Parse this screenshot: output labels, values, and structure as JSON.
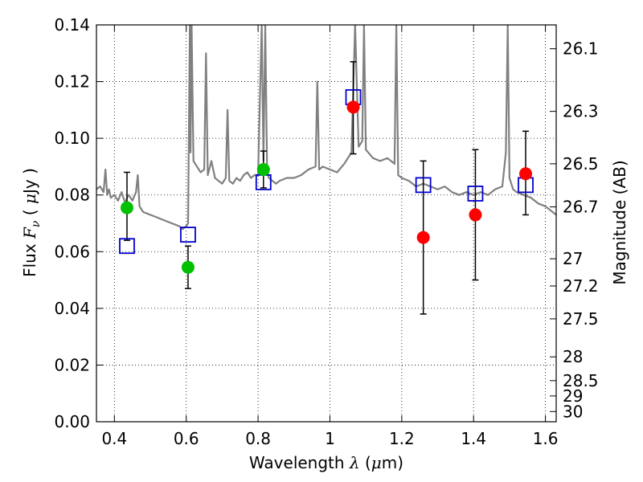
{
  "chart_data": {
    "type": "line",
    "xlabel": "Wavelength  λ (μm)",
    "ylabel": "Flux  F_ν  ( μJy )",
    "ylabel_right": "Magnitude (AB)",
    "xlim": [
      0.35,
      1.63
    ],
    "ylim": [
      0,
      0.14
    ],
    "grid": true,
    "x_ticks": [
      0.4,
      0.6,
      0.8,
      1.0,
      1.2,
      1.4,
      1.6
    ],
    "x_tick_labels": [
      "0.4",
      "0.6",
      "0.8",
      "1",
      "1.2",
      "1.4",
      "1.6"
    ],
    "y_ticks": [
      0,
      0.02,
      0.04,
      0.06,
      0.08,
      0.1,
      0.12,
      0.14
    ],
    "y_tick_labels": [
      "0.00",
      "0.02",
      "0.04",
      "0.06",
      "0.08",
      "0.10",
      "0.12",
      "0.14"
    ],
    "right_axis_ticks": [
      {
        "flux": 0.1316,
        "label": "26.1"
      },
      {
        "flux": 0.1095,
        "label": "26.3"
      },
      {
        "flux": 0.091,
        "label": "26.5"
      },
      {
        "flux": 0.0758,
        "label": "26.7"
      },
      {
        "flux": 0.0575,
        "label": "27"
      },
      {
        "flux": 0.0479,
        "label": "27.2"
      },
      {
        "flux": 0.0363,
        "label": "27.5"
      },
      {
        "flux": 0.0229,
        "label": "28"
      },
      {
        "flux": 0.0145,
        "label": "28.5"
      },
      {
        "flux": 0.0091,
        "label": "29"
      },
      {
        "flux": 0.0036,
        "label": "30"
      }
    ],
    "series": [
      {
        "kind": "model-spectrum",
        "color": "#808080",
        "x": [
          0.35,
          0.36,
          0.37,
          0.375,
          0.38,
          0.385,
          0.39,
          0.4,
          0.41,
          0.42,
          0.43,
          0.435,
          0.44,
          0.45,
          0.46,
          0.465,
          0.47,
          0.48,
          0.5,
          0.52,
          0.54,
          0.56,
          0.58,
          0.59,
          0.6,
          0.605,
          0.61,
          0.612,
          0.615,
          0.62,
          0.63,
          0.64,
          0.65,
          0.655,
          0.66,
          0.67,
          0.68,
          0.69,
          0.7,
          0.71,
          0.715,
          0.72,
          0.73,
          0.74,
          0.75,
          0.76,
          0.77,
          0.78,
          0.79,
          0.8,
          0.81,
          0.815,
          0.82,
          0.825,
          0.83,
          0.84,
          0.85,
          0.86,
          0.88,
          0.9,
          0.92,
          0.94,
          0.96,
          0.965,
          0.97,
          0.98,
          1.0,
          1.02,
          1.04,
          1.06,
          1.07,
          1.08,
          1.09,
          1.095,
          1.1,
          1.12,
          1.14,
          1.16,
          1.18,
          1.185,
          1.19,
          1.2,
          1.22,
          1.24,
          1.26,
          1.28,
          1.3,
          1.32,
          1.34,
          1.36,
          1.38,
          1.4,
          1.42,
          1.44,
          1.46,
          1.48,
          1.49,
          1.495,
          1.5,
          1.51,
          1.52,
          1.54,
          1.56,
          1.58,
          1.6,
          1.62,
          1.63
        ],
        "y": [
          0.082,
          0.083,
          0.081,
          0.089,
          0.08,
          0.082,
          0.079,
          0.08,
          0.078,
          0.081,
          0.077,
          0.079,
          0.08,
          0.078,
          0.081,
          0.087,
          0.076,
          0.074,
          0.073,
          0.072,
          0.071,
          0.07,
          0.069,
          0.068,
          0.069,
          0.07,
          0.14,
          0.095,
          0.14,
          0.092,
          0.09,
          0.088,
          0.089,
          0.13,
          0.087,
          0.092,
          0.086,
          0.085,
          0.084,
          0.086,
          0.11,
          0.085,
          0.084,
          0.086,
          0.085,
          0.087,
          0.088,
          0.086,
          0.087,
          0.087,
          0.14,
          0.092,
          0.14,
          0.089,
          0.086,
          0.085,
          0.084,
          0.085,
          0.086,
          0.086,
          0.087,
          0.089,
          0.09,
          0.12,
          0.089,
          0.09,
          0.089,
          0.088,
          0.091,
          0.095,
          0.14,
          0.097,
          0.099,
          0.14,
          0.096,
          0.093,
          0.092,
          0.093,
          0.091,
          0.14,
          0.087,
          0.086,
          0.085,
          0.083,
          0.084,
          0.083,
          0.082,
          0.083,
          0.081,
          0.08,
          0.081,
          0.08,
          0.081,
          0.08,
          0.082,
          0.083,
          0.095,
          0.14,
          0.086,
          0.082,
          0.081,
          0.08,
          0.079,
          0.077,
          0.076,
          0.074,
          0.073
        ]
      },
      {
        "kind": "model-photometry",
        "marker": "open-square",
        "color": "#0000cc",
        "x": [
          0.435,
          0.605,
          0.815,
          1.065,
          1.26,
          1.405,
          1.545
        ],
        "y": [
          0.062,
          0.066,
          0.0845,
          0.1145,
          0.0835,
          0.0805,
          0.0835
        ]
      },
      {
        "kind": "observed-filled",
        "marker": "circle",
        "color": "#00c000",
        "x": [
          0.435,
          0.605,
          0.815
        ],
        "y": [
          0.0755,
          0.0545,
          0.089
        ],
        "err_low": [
          0.064,
          0.047,
          0.0825
        ],
        "err_high": [
          0.088,
          0.062,
          0.0955
        ]
      },
      {
        "kind": "observed-filled",
        "marker": "circle",
        "color": "#ff0000",
        "x": [
          1.065,
          1.26,
          1.405,
          1.545
        ],
        "y": [
          0.111,
          0.065,
          0.073,
          0.0875
        ],
        "err_low": [
          0.0945,
          0.038,
          0.05,
          0.073
        ],
        "err_high": [
          0.127,
          0.092,
          0.096,
          0.1025
        ]
      }
    ]
  }
}
